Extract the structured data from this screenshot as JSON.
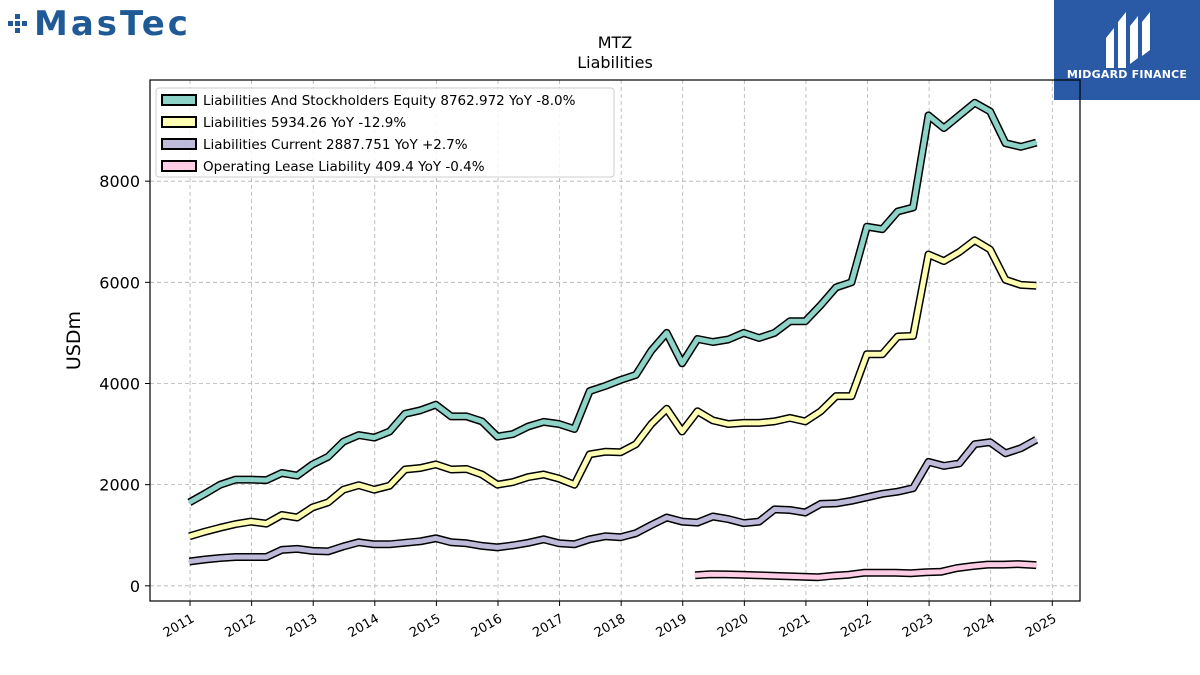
{
  "branding": {
    "left_logo": "MasTec",
    "right_logo": "MIDGARD FINANCE",
    "left_color": "#1f5a96",
    "right_bg": "#2a5aa6"
  },
  "chart_data": {
    "type": "line",
    "title": "MTZ",
    "subtitle": "Liabilities",
    "ylabel": "USDm",
    "xlabel": "",
    "ylim": [
      -300,
      10000
    ],
    "xlim": [
      2010.35,
      2025.45
    ],
    "yticks": [
      0,
      2000,
      4000,
      6000,
      8000
    ],
    "xticks": [
      "2011",
      "2012",
      "2013",
      "2014",
      "2015",
      "2016",
      "2017",
      "2018",
      "2019",
      "2020",
      "2021",
      "2022",
      "2023",
      "2024",
      "2025"
    ],
    "grid": true,
    "legend_position": "top-left",
    "series": [
      {
        "name": "Liabilities And Stockholders Equity",
        "legend": "Liabilities And Stockholders Equity  8762.972 YoY -8.0%",
        "color": "#8dd3c7",
        "x": [
          2010.99,
          2011.24,
          2011.49,
          2011.74,
          2011.99,
          2012.24,
          2012.49,
          2012.74,
          2012.99,
          2013.24,
          2013.49,
          2013.74,
          2013.99,
          2014.24,
          2014.49,
          2014.74,
          2014.99,
          2015.24,
          2015.49,
          2015.74,
          2015.99,
          2016.24,
          2016.49,
          2016.74,
          2016.99,
          2017.24,
          2017.49,
          2017.74,
          2017.99,
          2018.24,
          2018.49,
          2018.74,
          2018.99,
          2019.24,
          2019.49,
          2019.74,
          2019.99,
          2020.24,
          2020.49,
          2020.74,
          2020.99,
          2021.24,
          2021.49,
          2021.74,
          2021.99,
          2022.24,
          2022.49,
          2022.74,
          2022.99,
          2023.24,
          2023.49,
          2023.74,
          2023.99,
          2024.24,
          2024.49,
          2024.74
        ],
        "values": [
          1650,
          1820,
          2000,
          2100,
          2100,
          2090,
          2230,
          2180,
          2400,
          2550,
          2850,
          2980,
          2930,
          3050,
          3400,
          3470,
          3580,
          3350,
          3350,
          3250,
          2950,
          3000,
          3150,
          3240,
          3200,
          3100,
          3850,
          3950,
          4070,
          4170,
          4650,
          5000,
          4400,
          4880,
          4820,
          4870,
          5000,
          4900,
          5000,
          5230,
          5230,
          5550,
          5900,
          6000,
          7100,
          7050,
          7400,
          7480,
          9300,
          9050,
          9300,
          9550,
          9380,
          8750,
          8680,
          8763
        ]
      },
      {
        "name": "Liabilities",
        "legend": "Liabilities  5934.26 YoY -12.9%",
        "color": "#ffffb3",
        "x": [
          2010.99,
          2011.24,
          2011.49,
          2011.74,
          2011.99,
          2012.24,
          2012.49,
          2012.74,
          2012.99,
          2013.24,
          2013.49,
          2013.74,
          2013.99,
          2014.24,
          2014.49,
          2014.74,
          2014.99,
          2015.24,
          2015.49,
          2015.74,
          2015.99,
          2016.24,
          2016.49,
          2016.74,
          2016.99,
          2017.24,
          2017.49,
          2017.74,
          2017.99,
          2018.24,
          2018.49,
          2018.74,
          2018.99,
          2019.24,
          2019.49,
          2019.74,
          2019.99,
          2020.24,
          2020.49,
          2020.74,
          2020.99,
          2021.24,
          2021.49,
          2021.74,
          2021.99,
          2022.24,
          2022.49,
          2022.74,
          2022.99,
          2023.24,
          2023.49,
          2023.74,
          2023.99,
          2024.24,
          2024.49,
          2024.74
        ],
        "values": [
          980,
          1070,
          1150,
          1220,
          1270,
          1230,
          1400,
          1350,
          1550,
          1650,
          1900,
          1990,
          1900,
          1980,
          2300,
          2330,
          2400,
          2300,
          2310,
          2200,
          2000,
          2050,
          2150,
          2200,
          2120,
          2000,
          2600,
          2650,
          2640,
          2800,
          3200,
          3500,
          3050,
          3450,
          3270,
          3200,
          3220,
          3220,
          3250,
          3320,
          3250,
          3450,
          3750,
          3750,
          4580,
          4580,
          4930,
          4940,
          6550,
          6420,
          6600,
          6830,
          6650,
          6050,
          5950,
          5934
        ]
      },
      {
        "name": "Liabilities Current",
        "legend": "Liabilities Current  2887.751 YoY +2.7%",
        "color": "#bebada",
        "x": [
          2010.99,
          2011.24,
          2011.49,
          2011.74,
          2011.99,
          2012.24,
          2012.49,
          2012.74,
          2012.99,
          2013.24,
          2013.49,
          2013.74,
          2013.99,
          2014.24,
          2014.49,
          2014.74,
          2014.99,
          2015.24,
          2015.49,
          2015.74,
          2015.99,
          2016.24,
          2016.49,
          2016.74,
          2016.99,
          2017.24,
          2017.49,
          2017.74,
          2017.99,
          2018.24,
          2018.49,
          2018.74,
          2018.99,
          2019.24,
          2019.49,
          2019.74,
          2019.99,
          2020.24,
          2020.49,
          2020.74,
          2020.99,
          2021.24,
          2021.49,
          2021.74,
          2021.99,
          2022.24,
          2022.49,
          2022.74,
          2022.99,
          2023.24,
          2023.49,
          2023.74,
          2023.99,
          2024.24,
          2024.49,
          2024.74
        ],
        "values": [
          480,
          520,
          550,
          570,
          570,
          570,
          710,
          730,
          690,
          680,
          780,
          860,
          820,
          820,
          850,
          880,
          940,
          860,
          840,
          790,
          760,
          800,
          850,
          920,
          840,
          820,
          920,
          980,
          960,
          1040,
          1200,
          1350,
          1270,
          1250,
          1370,
          1320,
          1240,
          1270,
          1510,
          1500,
          1450,
          1620,
          1630,
          1680,
          1750,
          1820,
          1860,
          1930,
          2450,
          2370,
          2420,
          2800,
          2840,
          2620,
          2720,
          2888
        ]
      },
      {
        "name": "Operating Lease Liability",
        "legend": "Operating Lease Liability  409.4 YoY -0.4%",
        "color": "#fccde5",
        "x": [
          2019.2,
          2019.45,
          2019.7,
          2019.95,
          2020.2,
          2020.45,
          2020.7,
          2020.95,
          2021.2,
          2021.45,
          2021.7,
          2021.95,
          2022.2,
          2022.45,
          2022.7,
          2022.95,
          2023.2,
          2023.45,
          2023.7,
          2023.95,
          2024.2,
          2024.45,
          2024.74
        ],
        "values": [
          210,
          230,
          225,
          220,
          210,
          200,
          190,
          180,
          170,
          200,
          220,
          260,
          260,
          260,
          250,
          270,
          280,
          350,
          390,
          420,
          420,
          430,
          409
        ]
      }
    ]
  }
}
